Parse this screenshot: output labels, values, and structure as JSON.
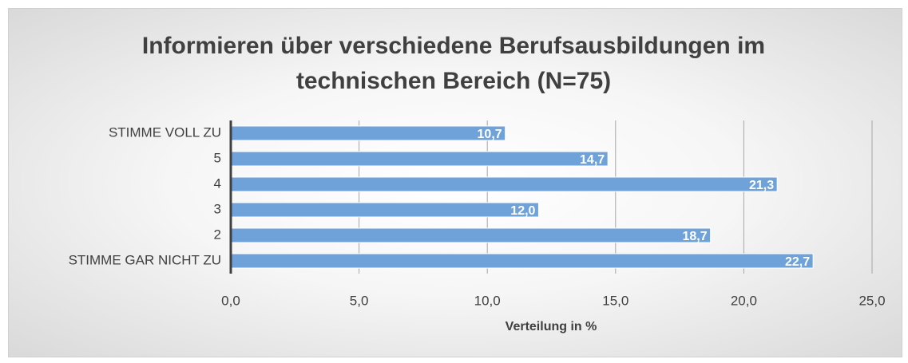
{
  "chart_data": {
    "type": "hbar",
    "title": "Informieren über verschiedene Berufsausbildungen im technischen Bereich (N=75)",
    "categories": [
      "STIMME VOLL ZU",
      "5",
      "4",
      "3",
      "2",
      "STIMME GAR NICHT ZU"
    ],
    "values": [
      10.7,
      14.7,
      21.3,
      12.0,
      18.7,
      22.7
    ],
    "value_labels": [
      "10,7",
      "14,7",
      "21,3",
      "12,0",
      "18,7",
      "22,7"
    ],
    "color": "#6fa2d9",
    "xlabel": "Verteilung in %",
    "xlim": [
      0,
      25
    ],
    "xticks": [
      {
        "value": 0,
        "label": "0,0"
      },
      {
        "value": 5,
        "label": "5,0"
      },
      {
        "value": 10,
        "label": "10,0"
      },
      {
        "value": 15,
        "label": "15,0"
      },
      {
        "value": 20,
        "label": "20,0"
      },
      {
        "value": 25,
        "label": "25,0"
      }
    ],
    "grid": true
  }
}
